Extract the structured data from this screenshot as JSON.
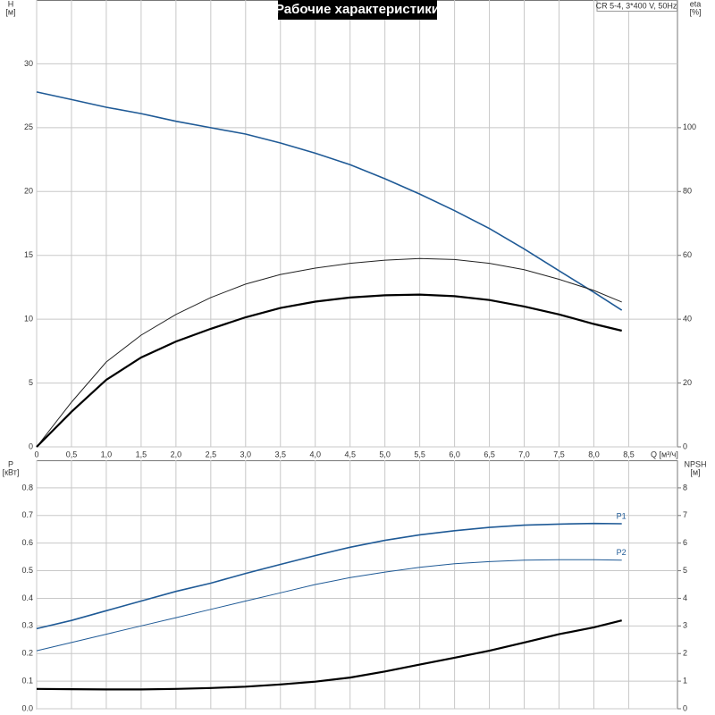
{
  "chart_data": [
    {
      "type": "line",
      "title": "Рабочие характеристики",
      "subtitle": "CR 5-4, 3*400 V, 50Hz",
      "ylabel": [
        "H",
        "[м]"
      ],
      "y2label": [
        "eta",
        "[%]"
      ],
      "xlabel": "Q [м³/ч]",
      "grid": true,
      "x": [
        0,
        0.5,
        1,
        1.5,
        2,
        2.5,
        3,
        3.5,
        4,
        4.5,
        5,
        5.5,
        6,
        6.5,
        7,
        7.5,
        8,
        8.4
      ],
      "xlim": [
        0,
        9.2
      ],
      "xticks": [
        0,
        {
          "value": 0.5,
          "label": "0,5"
        },
        {
          "value": 1,
          "label": "1,0"
        },
        {
          "value": 1.5,
          "label": "1,5"
        },
        {
          "value": 2,
          "label": "2,0"
        },
        {
          "value": 2.5,
          "label": "2,5"
        },
        {
          "value": 3,
          "label": "3,0"
        },
        {
          "value": 3.5,
          "label": "3,5"
        },
        {
          "value": 4,
          "label": "4,0"
        },
        {
          "value": 4.5,
          "label": "4,5"
        },
        {
          "value": 5,
          "label": "5,0"
        },
        {
          "value": 5.5,
          "label": "5,5"
        },
        {
          "value": 6,
          "label": "6,0"
        },
        {
          "value": 6.5,
          "label": "6,5"
        },
        {
          "value": 7,
          "label": "7,0"
        },
        {
          "value": 7.5,
          "label": "7,5"
        },
        {
          "value": 8,
          "label": "8,0"
        },
        {
          "value": 8.5,
          "label": "8,5"
        }
      ],
      "ylim": [
        0,
        35
      ],
      "yticks": [
        0,
        5,
        10,
        15,
        20,
        25,
        30
      ],
      "y2lim": [
        0,
        140
      ],
      "y2ticks": [
        0,
        20,
        40,
        60,
        80,
        100
      ],
      "series": [
        {
          "color": "#1f5a96",
          "values": [
            27.8,
            27.2,
            26.6,
            26.1,
            25.5,
            25.0,
            24.5,
            23.8,
            23.0,
            22.1,
            21.0,
            19.8,
            18.5,
            17.1,
            15.5,
            13.8,
            12.1,
            10.7
          ]
        },
        {
          "color": "#222222",
          "axis": "y2",
          "values": [
            0,
            14,
            26.6,
            35,
            41.5,
            46.8,
            51,
            54,
            56,
            57.5,
            58.5,
            59,
            58.7,
            57.5,
            55.5,
            52.5,
            49,
            45.4
          ]
        },
        {
          "color": "#000000",
          "axis": "y2",
          "values": [
            0,
            11,
            21,
            28,
            33,
            37,
            40.6,
            43.5,
            45.5,
            46.8,
            47.5,
            47.7,
            47.2,
            46,
            44,
            41.5,
            38.5,
            36.4
          ]
        }
      ]
    },
    {
      "type": "line",
      "ylabel": [
        "P",
        "[кВт]"
      ],
      "y2label": [
        "NPSH",
        "[м]"
      ],
      "grid": true,
      "x": [
        0,
        0.5,
        1,
        1.5,
        2,
        2.5,
        3,
        3.5,
        4,
        4.5,
        5,
        5.5,
        6,
        6.5,
        7,
        7.5,
        8,
        8.4
      ],
      "xlim": [
        0,
        9.2
      ],
      "xticks": [
        0,
        0.5,
        1,
        1.5,
        2,
        2.5,
        3,
        3.5,
        4,
        4.5,
        5,
        5.5,
        6,
        6.5,
        7,
        7.5,
        8,
        8.5
      ],
      "ylim": [
        0,
        0.9
      ],
      "yticks": [
        {
          "value": 0,
          "label": "0.0"
        },
        0.1,
        0.2,
        0.3,
        0.4,
        0.5,
        0.6,
        0.7,
        0.8
      ],
      "y2lim": [
        0,
        9
      ],
      "y2ticks": [
        0,
        1,
        2,
        3,
        4,
        5,
        6,
        7,
        8
      ],
      "series": [
        {
          "name": "P1",
          "color": "#1f5a96",
          "values": [
            0.29,
            0.32,
            0.355,
            0.39,
            0.425,
            0.455,
            0.49,
            0.523,
            0.555,
            0.585,
            0.61,
            0.63,
            0.645,
            0.657,
            0.665,
            0.669,
            0.671,
            0.67
          ]
        },
        {
          "name": "P2",
          "color": "#1f5a96",
          "values": [
            0.21,
            0.24,
            0.27,
            0.3,
            0.33,
            0.36,
            0.39,
            0.42,
            0.45,
            0.475,
            0.495,
            0.512,
            0.525,
            0.533,
            0.538,
            0.54,
            0.54,
            0.538
          ]
        },
        {
          "color": "#000000",
          "axis": "y2",
          "values": [
            0.72,
            0.71,
            0.7,
            0.7,
            0.72,
            0.75,
            0.8,
            0.88,
            0.98,
            1.13,
            1.35,
            1.6,
            1.85,
            2.1,
            2.4,
            2.7,
            2.95,
            3.2
          ]
        }
      ]
    }
  ]
}
